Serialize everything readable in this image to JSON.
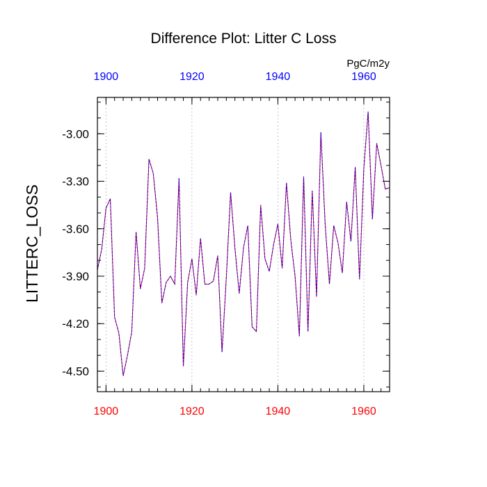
{
  "chart_data": {
    "type": "line",
    "title": "Difference Plot: Litter C Loss",
    "ylabel": "LITTERC_LOSS",
    "units": "PgC/m2y",
    "xlim": [
      1898,
      1966
    ],
    "ylim": [
      -4.63,
      -2.77
    ],
    "y_ticks": [
      -3.0,
      -3.3,
      -3.6,
      -3.9,
      -4.2,
      -4.5
    ],
    "y_tick_labels": [
      "-3.00",
      "-3.30",
      "-3.60",
      "-3.90",
      "-4.20",
      "-4.50"
    ],
    "x_ticks": [
      1900,
      1920,
      1940,
      1960
    ],
    "x_tick_labels": [
      "1900",
      "1920",
      "1940",
      "1960"
    ],
    "bottom_axis_color": "#ff0000",
    "top_axis_color": "#0000ff",
    "series": [
      {
        "name": "series-red",
        "color": "#ff0000",
        "x": [
          1898,
          1899,
          1900,
          1901,
          1902,
          1903,
          1904,
          1905,
          1906,
          1907,
          1908,
          1909,
          1910,
          1911,
          1912,
          1913,
          1914,
          1915,
          1916,
          1917,
          1918,
          1919,
          1920,
          1921,
          1922,
          1923,
          1924,
          1925,
          1926,
          1927,
          1928,
          1929,
          1930,
          1931,
          1932,
          1933,
          1934,
          1935,
          1936,
          1937,
          1938,
          1939,
          1940,
          1941,
          1942,
          1943,
          1944,
          1945,
          1946,
          1947,
          1948,
          1949,
          1950,
          1951,
          1952,
          1953,
          1954,
          1955,
          1956,
          1957,
          1958,
          1959,
          1960,
          1961,
          1962,
          1963,
          1964,
          1965,
          1966
        ],
        "values": [
          -3.86,
          -3.73,
          -3.47,
          -3.41,
          -4.16,
          -4.26,
          -4.53,
          -4.4,
          -4.25,
          -3.62,
          -3.98,
          -3.85,
          -3.16,
          -3.25,
          -3.53,
          -4.07,
          -3.94,
          -3.9,
          -3.95,
          -3.28,
          -4.47,
          -3.94,
          -3.79,
          -4.02,
          -3.66,
          -3.95,
          -3.95,
          -3.93,
          -3.77,
          -4.38,
          -3.91,
          -3.37,
          -3.72,
          -4.01,
          -3.72,
          -3.58,
          -4.22,
          -4.25,
          -3.45,
          -3.79,
          -3.87,
          -3.7,
          -3.57,
          -3.85,
          -3.31,
          -3.67,
          -3.9,
          -4.28,
          -3.27,
          -4.25,
          -3.36,
          -4.03,
          -2.99,
          -3.57,
          -3.95,
          -3.58,
          -3.69,
          -3.88,
          -3.43,
          -3.68,
          -3.21,
          -3.92,
          -3.22,
          -2.86,
          -3.54,
          -3.06,
          -3.2,
          -3.35,
          -3.34
        ]
      },
      {
        "name": "series-blue",
        "color": "#0000ff",
        "x": [
          1898,
          1899,
          1900,
          1901,
          1902,
          1903,
          1904,
          1905,
          1906,
          1907,
          1908,
          1909,
          1910,
          1911,
          1912,
          1913,
          1914,
          1915,
          1916,
          1917,
          1918,
          1919,
          1920,
          1921,
          1922,
          1923,
          1924,
          1925,
          1926,
          1927,
          1928,
          1929,
          1930,
          1931,
          1932,
          1933,
          1934,
          1935,
          1936,
          1937,
          1938,
          1939,
          1940,
          1941,
          1942,
          1943,
          1944,
          1945,
          1946,
          1947,
          1948,
          1949,
          1950,
          1951,
          1952,
          1953,
          1954,
          1955,
          1956,
          1957,
          1958,
          1959,
          1960,
          1961,
          1962,
          1963,
          1964,
          1965,
          1966
        ],
        "values": [
          -3.86,
          -3.73,
          -3.47,
          -3.41,
          -4.16,
          -4.26,
          -4.53,
          -4.4,
          -4.25,
          -3.62,
          -3.98,
          -3.85,
          -3.16,
          -3.25,
          -3.53,
          -4.07,
          -3.94,
          -3.9,
          -3.95,
          -3.28,
          -4.47,
          -3.94,
          -3.79,
          -4.02,
          -3.66,
          -3.95,
          -3.95,
          -3.93,
          -3.77,
          -4.38,
          -3.91,
          -3.37,
          -3.72,
          -4.01,
          -3.72,
          -3.58,
          -4.22,
          -4.25,
          -3.45,
          -3.79,
          -3.87,
          -3.7,
          -3.57,
          -3.85,
          -3.31,
          -3.67,
          -3.9,
          -4.28,
          -3.27,
          -4.25,
          -3.36,
          -4.03,
          -2.99,
          -3.57,
          -3.95,
          -3.58,
          -3.69,
          -3.88,
          -3.43,
          -3.68,
          -3.21,
          -3.92,
          -3.22,
          -2.86,
          -3.54,
          -3.06,
          -3.2,
          -3.35,
          -3.34
        ]
      }
    ]
  }
}
